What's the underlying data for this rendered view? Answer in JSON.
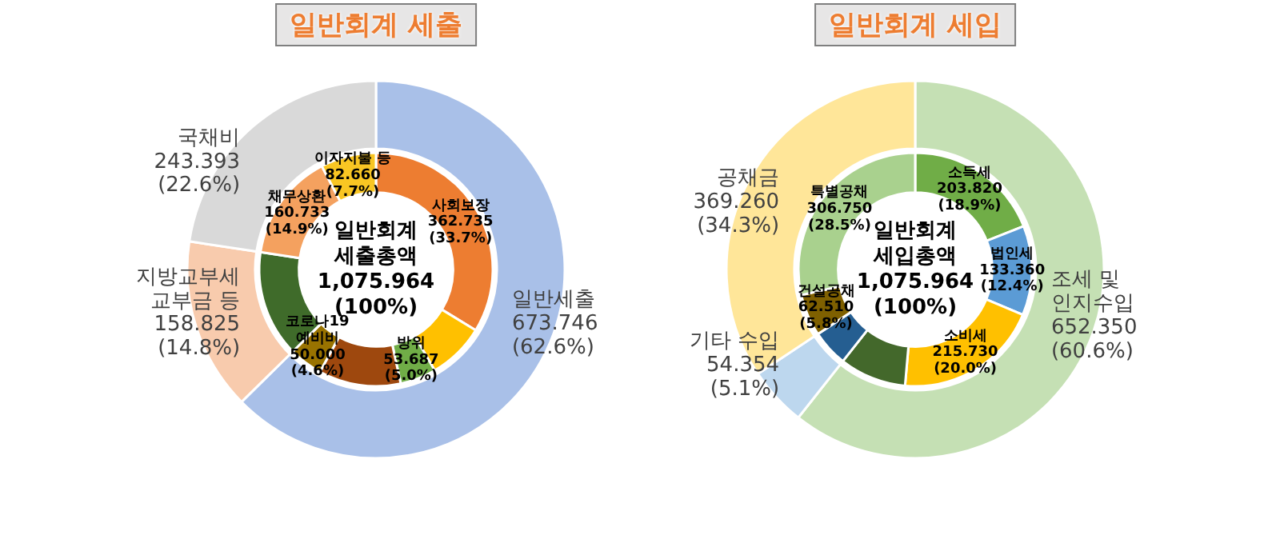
{
  "chart_data": [
    {
      "type": "donut",
      "title": "일반회계 세출",
      "legend": false,
      "categories": [
        "일반세출",
        "지방교부세\n교부금 등",
        "국채비"
      ],
      "values": [
        673.746,
        158.825,
        243.393
      ],
      "colors": [
        "#a9c0e8",
        "#f8cbad",
        "#d9d9d9"
      ],
      "value_labels": [
        "673.746\n(62.6%)",
        "158.825\n(14.8%)",
        "243.393\n(22.6%)"
      ]
    },
    {
      "type": "donut",
      "legend": false,
      "annotations": [
        "일반회계\n세출총액\n1,075.964\n(100%)"
      ],
      "categories": [
        "사회보장",
        null,
        "방위",
        null,
        "코로나19\n예비비",
        null,
        "채무상환",
        "이자지불 등"
      ],
      "values": [
        362.735,
        85,
        53.687,
        122.324,
        50,
        158.825,
        160.733,
        82.66
      ],
      "colors": [
        "#ed7d31",
        "#ffc000",
        "#70ad47",
        "#9e480e",
        "#997300",
        "#3f6b2a",
        "#f4a15f",
        "#f9c623"
      ],
      "value_labels": [
        "362.735\n(33.7%)",
        null,
        "53.687\n(5.0%)",
        null,
        "50.000\n(4.6%)",
        null,
        "160.733\n(14.9%)",
        "82.660\n(7.7%)"
      ]
    },
    {
      "type": "donut",
      "title": "일반회계 세입",
      "legend": false,
      "categories": [
        "조세 및\n인지수입",
        "기타 수입",
        "공채금"
      ],
      "values": [
        652.35,
        54.354,
        369.26
      ],
      "colors": [
        "#c5e0b4",
        "#bdd7ee",
        "#ffe699"
      ],
      "value_labels": [
        "652.350\n(60.6%)",
        "54.354\n(5.1%)",
        "369.260\n(34.3%)"
      ]
    },
    {
      "type": "donut",
      "legend": false,
      "annotations": [
        "일반회계\n세입총액\n1,075.964\n(100%)"
      ],
      "categories": [
        "소득세",
        "법인세",
        "소비세",
        null,
        null,
        "건설공채",
        "특별공채"
      ],
      "values": [
        203.82,
        133.36,
        215.73,
        99.44,
        54.354,
        62.51,
        306.75
      ],
      "colors": [
        "#70ad47",
        "#5b9bd5",
        "#ffc000",
        "#43682b",
        "#255e91",
        "#7f6000",
        "#a9d18e"
      ],
      "value_labels": [
        "203.820\n(18.9%)",
        "133.360\n(12.4%)",
        "215.730\n(20.0%)",
        null,
        null,
        "62.510\n(5.8%)",
        "306.750\n(28.5%)"
      ]
    }
  ]
}
